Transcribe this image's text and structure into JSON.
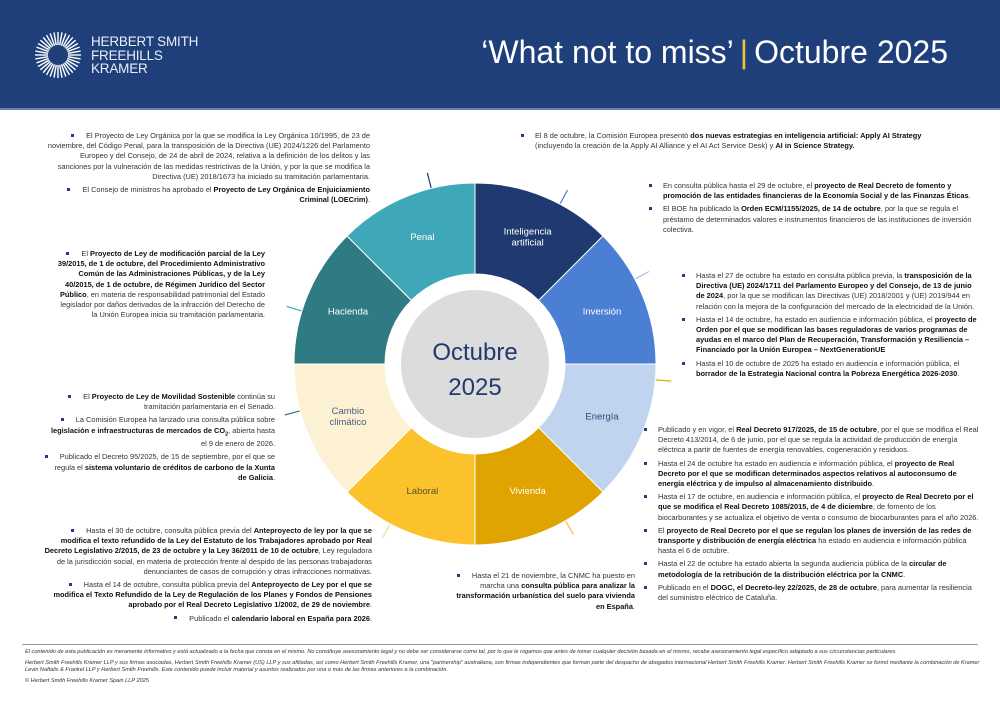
{
  "header": {
    "logo_lines": [
      "HERBERT SMITH",
      "FREEHILLS",
      "KRAMER"
    ],
    "title_left": "‘What not to miss’",
    "title_separator": "|",
    "title_right": "Octubre 2025"
  },
  "wheel": {
    "center_line1": "Octubre",
    "center_line2": "2025",
    "segments": [
      {
        "label": "Inteligencia artificial",
        "color": "#1e3a70",
        "text_color": "#ffffff"
      },
      {
        "label": "Inversión",
        "color": "#4a7fd4",
        "text_color": "#ffffff"
      },
      {
        "label": "Energía",
        "color": "#c0d3ef",
        "text_color": "#2e4a7a"
      },
      {
        "label": "Vivienda",
        "color": "#e0a400",
        "text_color": "#ffffff"
      },
      {
        "label": "Laboral",
        "color": "#fbc22c",
        "text_color": "#5a5030"
      },
      {
        "label": "Cambio climático",
        "color": "#fdf1d4",
        "text_color": "#4a6080"
      },
      {
        "label": "Hacienda",
        "color": "#2e7b84",
        "text_color": "#ffffff"
      },
      {
        "label": "Penal",
        "color": "#3fa8b8",
        "text_color": "#ffffff"
      }
    ],
    "center_color": "#dcdcdc",
    "center_text_color": "#1f3a6e"
  },
  "sections": {
    "penal": [
      [
        {
          "t": "El Proyecto de Ley Orgánica por la que se modifica la Ley Orgánica 10/1995, de 23 de noviembre, del Código Penal, para la transposición de la Directiva (UE) 2024/1226 del Parlamento Europeo y del Consejo, de 24 de abril de 2024, relativa a la definición de los delitos y las sanciones por la vulneración de las medidas restrictivas de la Unión, y por la que se modifica la Directiva (UE) 2018/1673 ha iniciado su tramitación parlamentaria."
        }
      ],
      [
        {
          "t": "El Consejo de ministros ha aprobado el "
        },
        {
          "t": "Proyecto de Ley Orgánica de Enjuiciamiento Criminal (LOECrim)",
          "b": true
        },
        {
          "t": "."
        }
      ]
    ],
    "hacienda": [
      [
        {
          "t": "El "
        },
        {
          "t": "Proyecto de Ley de modificación parcial de la Ley 39/2015, de 1 de octubre, del Procedimiento Administrativo Común de las Administraciones Públicas, y de la Ley 40/2015, de 1 de octubre, de Régimen Jurídico del Sector Público",
          "b": true
        },
        {
          "t": ", en materia de responsabilidad patrimonial del Estado legislador por daños derivados de la infracción del Derecho de la Unión Europea inicia su tramitación parlamentaria."
        }
      ]
    ],
    "cambio_climatico": [
      [
        {
          "t": "El "
        },
        {
          "t": "Proyecto de Ley de Movilidad Sostenible",
          "b": true
        },
        {
          "t": " continúa su tramitación parlamentaria en el Senado."
        }
      ],
      [
        {
          "t": "La Comisión Europea ha lanzado una consulta pública sobre "
        },
        {
          "t": "legislación e infraestructuras de mercados de CO",
          "b": true
        },
        {
          "t": "2",
          "sub": true,
          "b": true
        },
        {
          "t": ", abierta hasta el 9 de enero de 2026."
        }
      ],
      [
        {
          "t": "Publicado el Decreto 95/2025, de 15 de septiembre, por el que se regula el "
        },
        {
          "t": "sistema voluntario de créditos de carbono de la Xunta de Galicia",
          "b": true
        },
        {
          "t": "."
        }
      ]
    ],
    "laboral": [
      [
        {
          "t": "Hasta el 30 de octubre, consulta pública previa del "
        },
        {
          "t": "Anteproyecto de ley por la que se modifica el texto refundido de la Ley del Estatuto de los Trabajadores aprobado por Real Decreto Legislativo 2/2015, de 23 de octubre y la Ley 36/2011 de 10 de octubre",
          "b": true
        },
        {
          "t": ", Ley reguladora de la jurisdicción social, en materia de protección frente al despido de las personas trabajadoras denunciantes de casos de corrupción y otras infracciones normativas."
        }
      ],
      [
        {
          "t": "Hasta el 14 de octubre, consulta pública previa del "
        },
        {
          "t": "Anteproyecto de Ley por el que se modifica el Texto Refundido de la Ley de Regulación de los Planes y Fondos de Pensiones aprobado por el Real Decreto Legislativo 1/2002, de 29 de noviembre",
          "b": true
        },
        {
          "t": "."
        }
      ],
      [
        {
          "t": "Publicado el "
        },
        {
          "t": "calendario laboral en España para 2026",
          "b": true
        },
        {
          "t": "."
        }
      ]
    ],
    "vivienda": [
      [
        {
          "t": "Hasta el 21 de noviembre, la CNMC ha puesto en marcha una "
        },
        {
          "t": "consulta pública para analizar la transformación urbanística del suelo para vivienda en España",
          "b": true
        },
        {
          "t": "."
        }
      ]
    ],
    "inteligencia_artificial": [
      [
        {
          "t": "El 8 de octubre, la Comisión Europea presentó "
        },
        {
          "t": "dos nuevas estrategias en inteligencia artificial: Apply AI Strategy",
          "b": true
        },
        {
          "t": " (incluyendo la creación de la Apply AI Alliance y el AI Act Service Desk) y "
        },
        {
          "t": "AI in Science Strategy.",
          "b": true
        }
      ]
    ],
    "inversion": [
      [
        {
          "t": "En consulta pública hasta el 29 de octubre, el "
        },
        {
          "t": "proyecto de Real Decreto de fomento y promoción de las entidades financieras de la Economía Social y de las Finanzas Éticas",
          "b": true
        },
        {
          "t": "."
        }
      ],
      [
        {
          "t": "El BOE ha publicado la "
        },
        {
          "t": "Orden ECM/1155/2025, de 14 de octubre",
          "b": true
        },
        {
          "t": ", por la que se regula el préstamo de determinados valores e instrumentos financieros de las instituciones de inversión colectiva."
        }
      ]
    ],
    "energia_a": [
      [
        {
          "t": "Hasta el 27 de octubre ha estado en consulta pública previa, la "
        },
        {
          "t": "transposición de la Directiva (UE) 2024/1711 del Parlamento Europeo y del Consejo, de 13 de junio de 2024",
          "b": true
        },
        {
          "t": ", por la que se modifican las Directivas (UE) 2018/2001 y (UE) 2019/944 en relación con la mejora de la configuración del mercado de la electricidad de la Unión."
        }
      ],
      [
        {
          "t": "Hasta el 14 de octubre, ha estado en audiencia e información pública, el "
        },
        {
          "t": "proyecto de Orden por el que se modifican las bases reguladoras de varios programas de ayudas en el marco del Plan de Recuperación, Transformación y Resiliencia – Financiado por la Unión Europea – NextGenerationUE",
          "b": true
        }
      ],
      [
        {
          "t": "Hasta el 10 de octubre de 2025 ha estado en audiencia e información pública, el "
        },
        {
          "t": "borrador de la Estrategia Nacional contra la Pobreza Energética 2026-2030",
          "b": true
        },
        {
          "t": "."
        }
      ]
    ],
    "energia_b": [
      [
        {
          "t": "Publicado y en vigor, el "
        },
        {
          "t": "Real Decreto 917/2025, de 15 de octubre",
          "b": true
        },
        {
          "t": ", por el que se modifica el Real Decreto 413/2014, de 6 de junio, por el que se regula la actividad de producción de energía eléctrica a partir de fuentes de energía renovables, cogeneración y residuos."
        }
      ],
      [
        {
          "t": "Hasta el 24 de octubre ha estado en audiencia e información pública, el "
        },
        {
          "t": "proyecto de Real Decreto por el que se modifican determinados aspectos relativos al autoconsumo de energía eléctrica y de impulso al almacenamiento distribuido",
          "b": true
        },
        {
          "t": "."
        }
      ],
      [
        {
          "t": "Hasta el 17 de octubre, en audiencia e información pública, el "
        },
        {
          "t": "proyecto de Real Decreto por el que se modifica el Real Decreto 1085/2015, de 4 de diciembre",
          "b": true
        },
        {
          "t": ", de fomento de los biocarburantes y se actualiza el objetivo de venta o consumo de biocarburantes para el año 2026."
        }
      ],
      [
        {
          "t": "El "
        },
        {
          "t": "proyecto de Real Decreto por el que se regulan los planes de inversión de las redes de transporte y distribución de energía eléctrica",
          "b": true
        },
        {
          "t": " ha estado en audiencia e información pública hasta el 6 de octubre."
        }
      ],
      [
        {
          "t": "Hasta el 22 de octubre ha estado abierta la segunda audiencia pública de la "
        },
        {
          "t": "circular de metodología de la retribución de la distribución eléctrica por la CNMC",
          "b": true
        },
        {
          "t": "."
        }
      ],
      [
        {
          "t": "Publicado en el "
        },
        {
          "t": "DOGC, el Decreto-ley 22/2025, de 28 de octubre",
          "b": true
        },
        {
          "t": ", para aumentar la resiliencia del suministro eléctrico de Cataluña."
        }
      ]
    ]
  },
  "footer": {
    "disclaimer": "El contenido de esta publicación es meramente informativo y está actualizado a la fecha que consta en el mismo. No constituye asesoramiento legal y no debe ser considerarse como tal, por lo que le rogamos que antes de tomar cualquier decisión basada en el mismo, recabe asesoramiento legal específico adaptado a sus circunstancias particulares.",
    "firms": "Herbert Smith Freehills Kramer LLP y sus firmas asociadas, Herbert Smith Freehills Kramer (US) LLP y sus afiliadas, así como Herbert Smith Freehills Kramer, una \"partnership\" australiana, son firmas independientes que forman parte del despacho de abogados internacional Herbert Smith Freehills Kramer. Herbert Smith Freehills Kramer se formó mediante la combinación de Kramer Levin Naftalis & Frankel LLP y Herbert Smith Freehills. Este contenido puede incluir material y asuntos realizados por una o más de las firmas anteriores a la combinación.",
    "copyright": "© Herbert Smith Freehills Kramer Spain LLP 2025"
  }
}
